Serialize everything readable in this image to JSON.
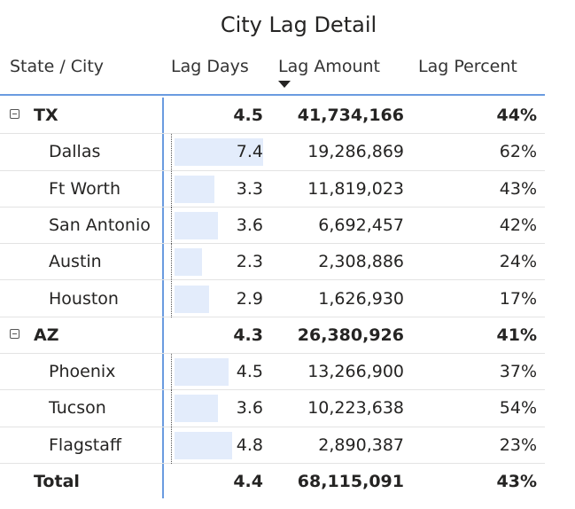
{
  "visual": {
    "title": "City Lag Detail"
  },
  "table": {
    "columns": [
      "State / City",
      "Lag Days",
      "Lag Amount",
      "Lag Percent"
    ],
    "sort": {
      "column": "Lag Amount",
      "direction": "descending"
    },
    "databar_max_days": 7.4,
    "groups": [
      {
        "state": "TX",
        "lag_days": "4.5",
        "lag_amount": "41,734,166",
        "lag_percent": "44%",
        "expanded": true,
        "cities": [
          {
            "city": "Dallas",
            "lag_days": "7.4",
            "lag_days_value": 7.4,
            "lag_amount": "19,286,869",
            "lag_percent": "62%"
          },
          {
            "city": "Ft Worth",
            "lag_days": "3.3",
            "lag_days_value": 3.3,
            "lag_amount": "11,819,023",
            "lag_percent": "43%"
          },
          {
            "city": "San Antonio",
            "lag_days": "3.6",
            "lag_days_value": 3.6,
            "lag_amount": "6,692,457",
            "lag_percent": "42%"
          },
          {
            "city": "Austin",
            "lag_days": "2.3",
            "lag_days_value": 2.3,
            "lag_amount": "2,308,886",
            "lag_percent": "24%"
          },
          {
            "city": "Houston",
            "lag_days": "2.9",
            "lag_days_value": 2.9,
            "lag_amount": "1,626,930",
            "lag_percent": "17%"
          }
        ]
      },
      {
        "state": "AZ",
        "lag_days": "4.3",
        "lag_amount": "26,380,926",
        "lag_percent": "41%",
        "expanded": true,
        "cities": [
          {
            "city": "Phoenix",
            "lag_days": "4.5",
            "lag_days_value": 4.5,
            "lag_amount": "13,266,900",
            "lag_percent": "37%"
          },
          {
            "city": "Tucson",
            "lag_days": "3.6",
            "lag_days_value": 3.6,
            "lag_amount": "10,223,638",
            "lag_percent": "54%"
          },
          {
            "city": "Flagstaff",
            "lag_days": "4.8",
            "lag_days_value": 4.8,
            "lag_amount": "2,890,387",
            "lag_percent": "23%"
          }
        ]
      }
    ],
    "total": {
      "label": "Total",
      "lag_days": "4.4",
      "lag_amount": "68,115,091",
      "lag_percent": "43%"
    }
  },
  "colors": {
    "header_rule": "#6a9be0",
    "databar": "#e3ecfb",
    "text": "#252423"
  }
}
